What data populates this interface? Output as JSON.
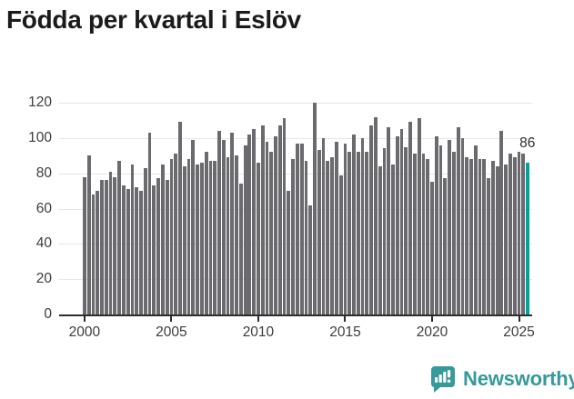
{
  "title": "Födda per kvartal i Eslöv",
  "colors": {
    "bar": "#6a6a6f",
    "highlight": "#00a29c",
    "grid": "#e6e6e6",
    "axis": "#2d2d2d",
    "label_text": "#3c3c3c",
    "title_text": "#1b1b1b",
    "brand_teal": "#36999c"
  },
  "annotation": {
    "label": "86"
  },
  "footer": {
    "brand": "Newsworthy",
    "logo_icon": "bar-chart-speech-bubble-icon"
  },
  "chart_data": {
    "type": "bar",
    "title": "Födda per kvartal i Eslöv",
    "xlabel": "",
    "ylabel": "",
    "ylim": [
      0,
      120
    ],
    "grid": true,
    "legend": false,
    "y_ticks": [
      0,
      20,
      40,
      60,
      80,
      100,
      120
    ],
    "x_tick_labels": [
      "2000",
      "2005",
      "2010",
      "2015",
      "2020",
      "2025"
    ],
    "categories": [
      "2000 Q1",
      "2000 Q2",
      "2000 Q3",
      "2000 Q4",
      "2001 Q1",
      "2001 Q2",
      "2001 Q3",
      "2001 Q4",
      "2002 Q1",
      "2002 Q2",
      "2002 Q3",
      "2002 Q4",
      "2003 Q1",
      "2003 Q2",
      "2003 Q3",
      "2003 Q4",
      "2004 Q1",
      "2004 Q2",
      "2004 Q3",
      "2004 Q4",
      "2005 Q1",
      "2005 Q2",
      "2005 Q3",
      "2005 Q4",
      "2006 Q1",
      "2006 Q2",
      "2006 Q3",
      "2006 Q4",
      "2007 Q1",
      "2007 Q2",
      "2007 Q3",
      "2007 Q4",
      "2008 Q1",
      "2008 Q2",
      "2008 Q3",
      "2008 Q4",
      "2009 Q1",
      "2009 Q2",
      "2009 Q3",
      "2009 Q4",
      "2010 Q1",
      "2010 Q2",
      "2010 Q3",
      "2010 Q4",
      "2011 Q1",
      "2011 Q2",
      "2011 Q3",
      "2011 Q4",
      "2012 Q1",
      "2012 Q2",
      "2012 Q3",
      "2012 Q4",
      "2013 Q1",
      "2013 Q2",
      "2013 Q3",
      "2013 Q4",
      "2014 Q1",
      "2014 Q2",
      "2014 Q3",
      "2014 Q4",
      "2015 Q1",
      "2015 Q2",
      "2015 Q3",
      "2015 Q4",
      "2016 Q1",
      "2016 Q2",
      "2016 Q3",
      "2016 Q4",
      "2017 Q1",
      "2017 Q2",
      "2017 Q3",
      "2017 Q4",
      "2018 Q1",
      "2018 Q2",
      "2018 Q3",
      "2018 Q4",
      "2019 Q1",
      "2019 Q2",
      "2019 Q3",
      "2019 Q4",
      "2020 Q1",
      "2020 Q2",
      "2020 Q3",
      "2020 Q4",
      "2021 Q1",
      "2021 Q2",
      "2021 Q3",
      "2021 Q4",
      "2022 Q1",
      "2022 Q2",
      "2022 Q3",
      "2022 Q4",
      "2023 Q1",
      "2023 Q2",
      "2023 Q3",
      "2023 Q4",
      "2024 Q1",
      "2024 Q2",
      "2024 Q3",
      "2024 Q4",
      "2025 Q1",
      "2025 Q2",
      "2025 Q3"
    ],
    "values": [
      78,
      90,
      68,
      70,
      76,
      76,
      81,
      78,
      87,
      73,
      71,
      85,
      72,
      70,
      83,
      103,
      73,
      77,
      85,
      76,
      88,
      91,
      109,
      84,
      88,
      99,
      85,
      86,
      92,
      87,
      87,
      104,
      99,
      89,
      103,
      90,
      74,
      96,
      102,
      105,
      86,
      107,
      98,
      92,
      101,
      107,
      111,
      70,
      88,
      97,
      97,
      87,
      62,
      120,
      93,
      100,
      87,
      89,
      98,
      79,
      97,
      92,
      102,
      92,
      100,
      92,
      107,
      112,
      84,
      94,
      106,
      85,
      101,
      105,
      95,
      109,
      91,
      111,
      91,
      88,
      75,
      101,
      96,
      77,
      99,
      92,
      106,
      100,
      89,
      88,
      96,
      88,
      88,
      77,
      87,
      84,
      104,
      85,
      91,
      89,
      92,
      91,
      86
    ],
    "highlight_index": 102,
    "highlight_value_label": "86"
  }
}
